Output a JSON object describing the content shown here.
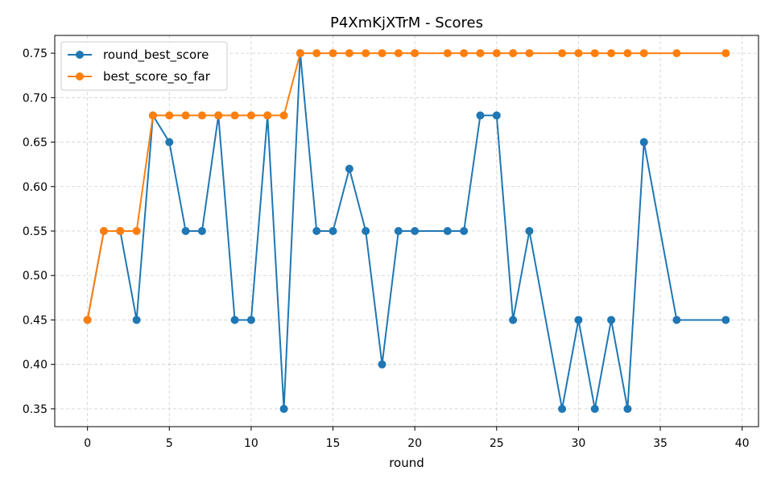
{
  "chart_data": {
    "type": "line",
    "title": "P4XmKjXTrM - Scores",
    "xlabel": "round",
    "ylabel": "",
    "xlim": [
      -2,
      41
    ],
    "ylim": [
      0.33,
      0.77
    ],
    "xticks": [
      0,
      5,
      10,
      15,
      20,
      25,
      30,
      35,
      40
    ],
    "yticks": [
      0.35,
      0.4,
      0.45,
      0.5,
      0.55,
      0.6,
      0.65,
      0.7,
      0.75
    ],
    "grid": true,
    "legend_position": "top-left",
    "series": [
      {
        "name": "round_best_score",
        "color": "#1f77b4",
        "x": [
          0,
          1,
          2,
          3,
          4,
          5,
          6,
          7,
          8,
          9,
          10,
          11,
          12,
          13,
          14,
          15,
          16,
          17,
          18,
          19,
          20,
          22,
          23,
          24,
          25,
          26,
          27,
          29,
          30,
          31,
          32,
          33,
          34,
          36,
          39
        ],
        "y": [
          0.45,
          0.55,
          0.55,
          0.45,
          0.68,
          0.65,
          0.55,
          0.55,
          0.68,
          0.45,
          0.45,
          0.68,
          0.35,
          0.75,
          0.55,
          0.55,
          0.62,
          0.55,
          0.4,
          0.55,
          0.55,
          0.55,
          0.55,
          0.68,
          0.68,
          0.45,
          0.55,
          0.35,
          0.45,
          0.35,
          0.45,
          0.35,
          0.65,
          0.45,
          0.45
        ]
      },
      {
        "name": "best_score_so_far",
        "color": "#ff7f0e",
        "x": [
          0,
          1,
          2,
          3,
          4,
          5,
          6,
          7,
          8,
          9,
          10,
          11,
          12,
          13,
          14,
          15,
          16,
          17,
          18,
          19,
          20,
          22,
          23,
          24,
          25,
          26,
          27,
          29,
          30,
          31,
          32,
          33,
          34,
          36,
          39
        ],
        "y": [
          0.45,
          0.55,
          0.55,
          0.55,
          0.68,
          0.68,
          0.68,
          0.68,
          0.68,
          0.68,
          0.68,
          0.68,
          0.68,
          0.75,
          0.75,
          0.75,
          0.75,
          0.75,
          0.75,
          0.75,
          0.75,
          0.75,
          0.75,
          0.75,
          0.75,
          0.75,
          0.75,
          0.75,
          0.75,
          0.75,
          0.75,
          0.75,
          0.75,
          0.75,
          0.75
        ]
      }
    ]
  }
}
